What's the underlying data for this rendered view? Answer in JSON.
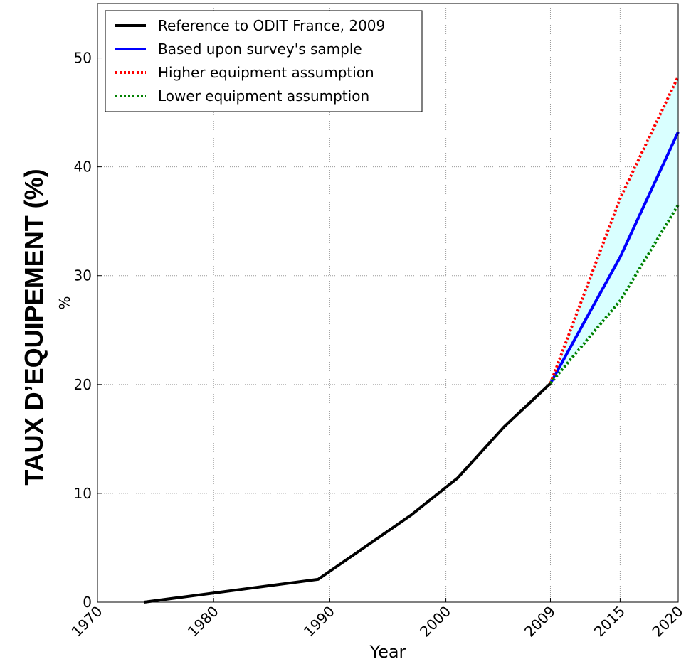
{
  "chart_data": {
    "type": "line",
    "side_title": "TAUX D’EQUIPEMENT (%)",
    "xlabel": "Year",
    "ylabel": "%",
    "xlim": [
      1970,
      2020
    ],
    "xticks": [
      1970,
      1980,
      1990,
      2000,
      2009,
      2015,
      2020
    ],
    "ylim": [
      0,
      55
    ],
    "yticks": [
      0,
      10,
      20,
      30,
      40,
      50
    ],
    "grid": true,
    "legend": "upper left",
    "band": {
      "between": [
        2,
        3
      ],
      "color": "#d9ffff"
    },
    "series": [
      {
        "name": "Reference to ODIT France, 2009",
        "color": "#000000",
        "linestyle": "solid",
        "x": [
          1974,
          1989,
          1997,
          2001,
          2005,
          2009
        ],
        "values": [
          0,
          2.1,
          8.0,
          11.4,
          16.1,
          20.1
        ]
      },
      {
        "name": "Based upon survey's sample",
        "color": "#0000ff",
        "linestyle": "solid",
        "x": [
          2009,
          2015,
          2020
        ],
        "values": [
          20.1,
          31.7,
          43.2
        ]
      },
      {
        "name": "Higher equipment assumption",
        "color": "#ff0000",
        "linestyle": "dotted",
        "x": [
          2009,
          2015,
          2020
        ],
        "values": [
          20.1,
          37.1,
          48.3
        ]
      },
      {
        "name": "Lower equipment assumption",
        "color": "#008000",
        "linestyle": "dotted",
        "x": [
          2009,
          2015,
          2020
        ],
        "values": [
          20.1,
          27.7,
          36.5
        ]
      }
    ]
  }
}
